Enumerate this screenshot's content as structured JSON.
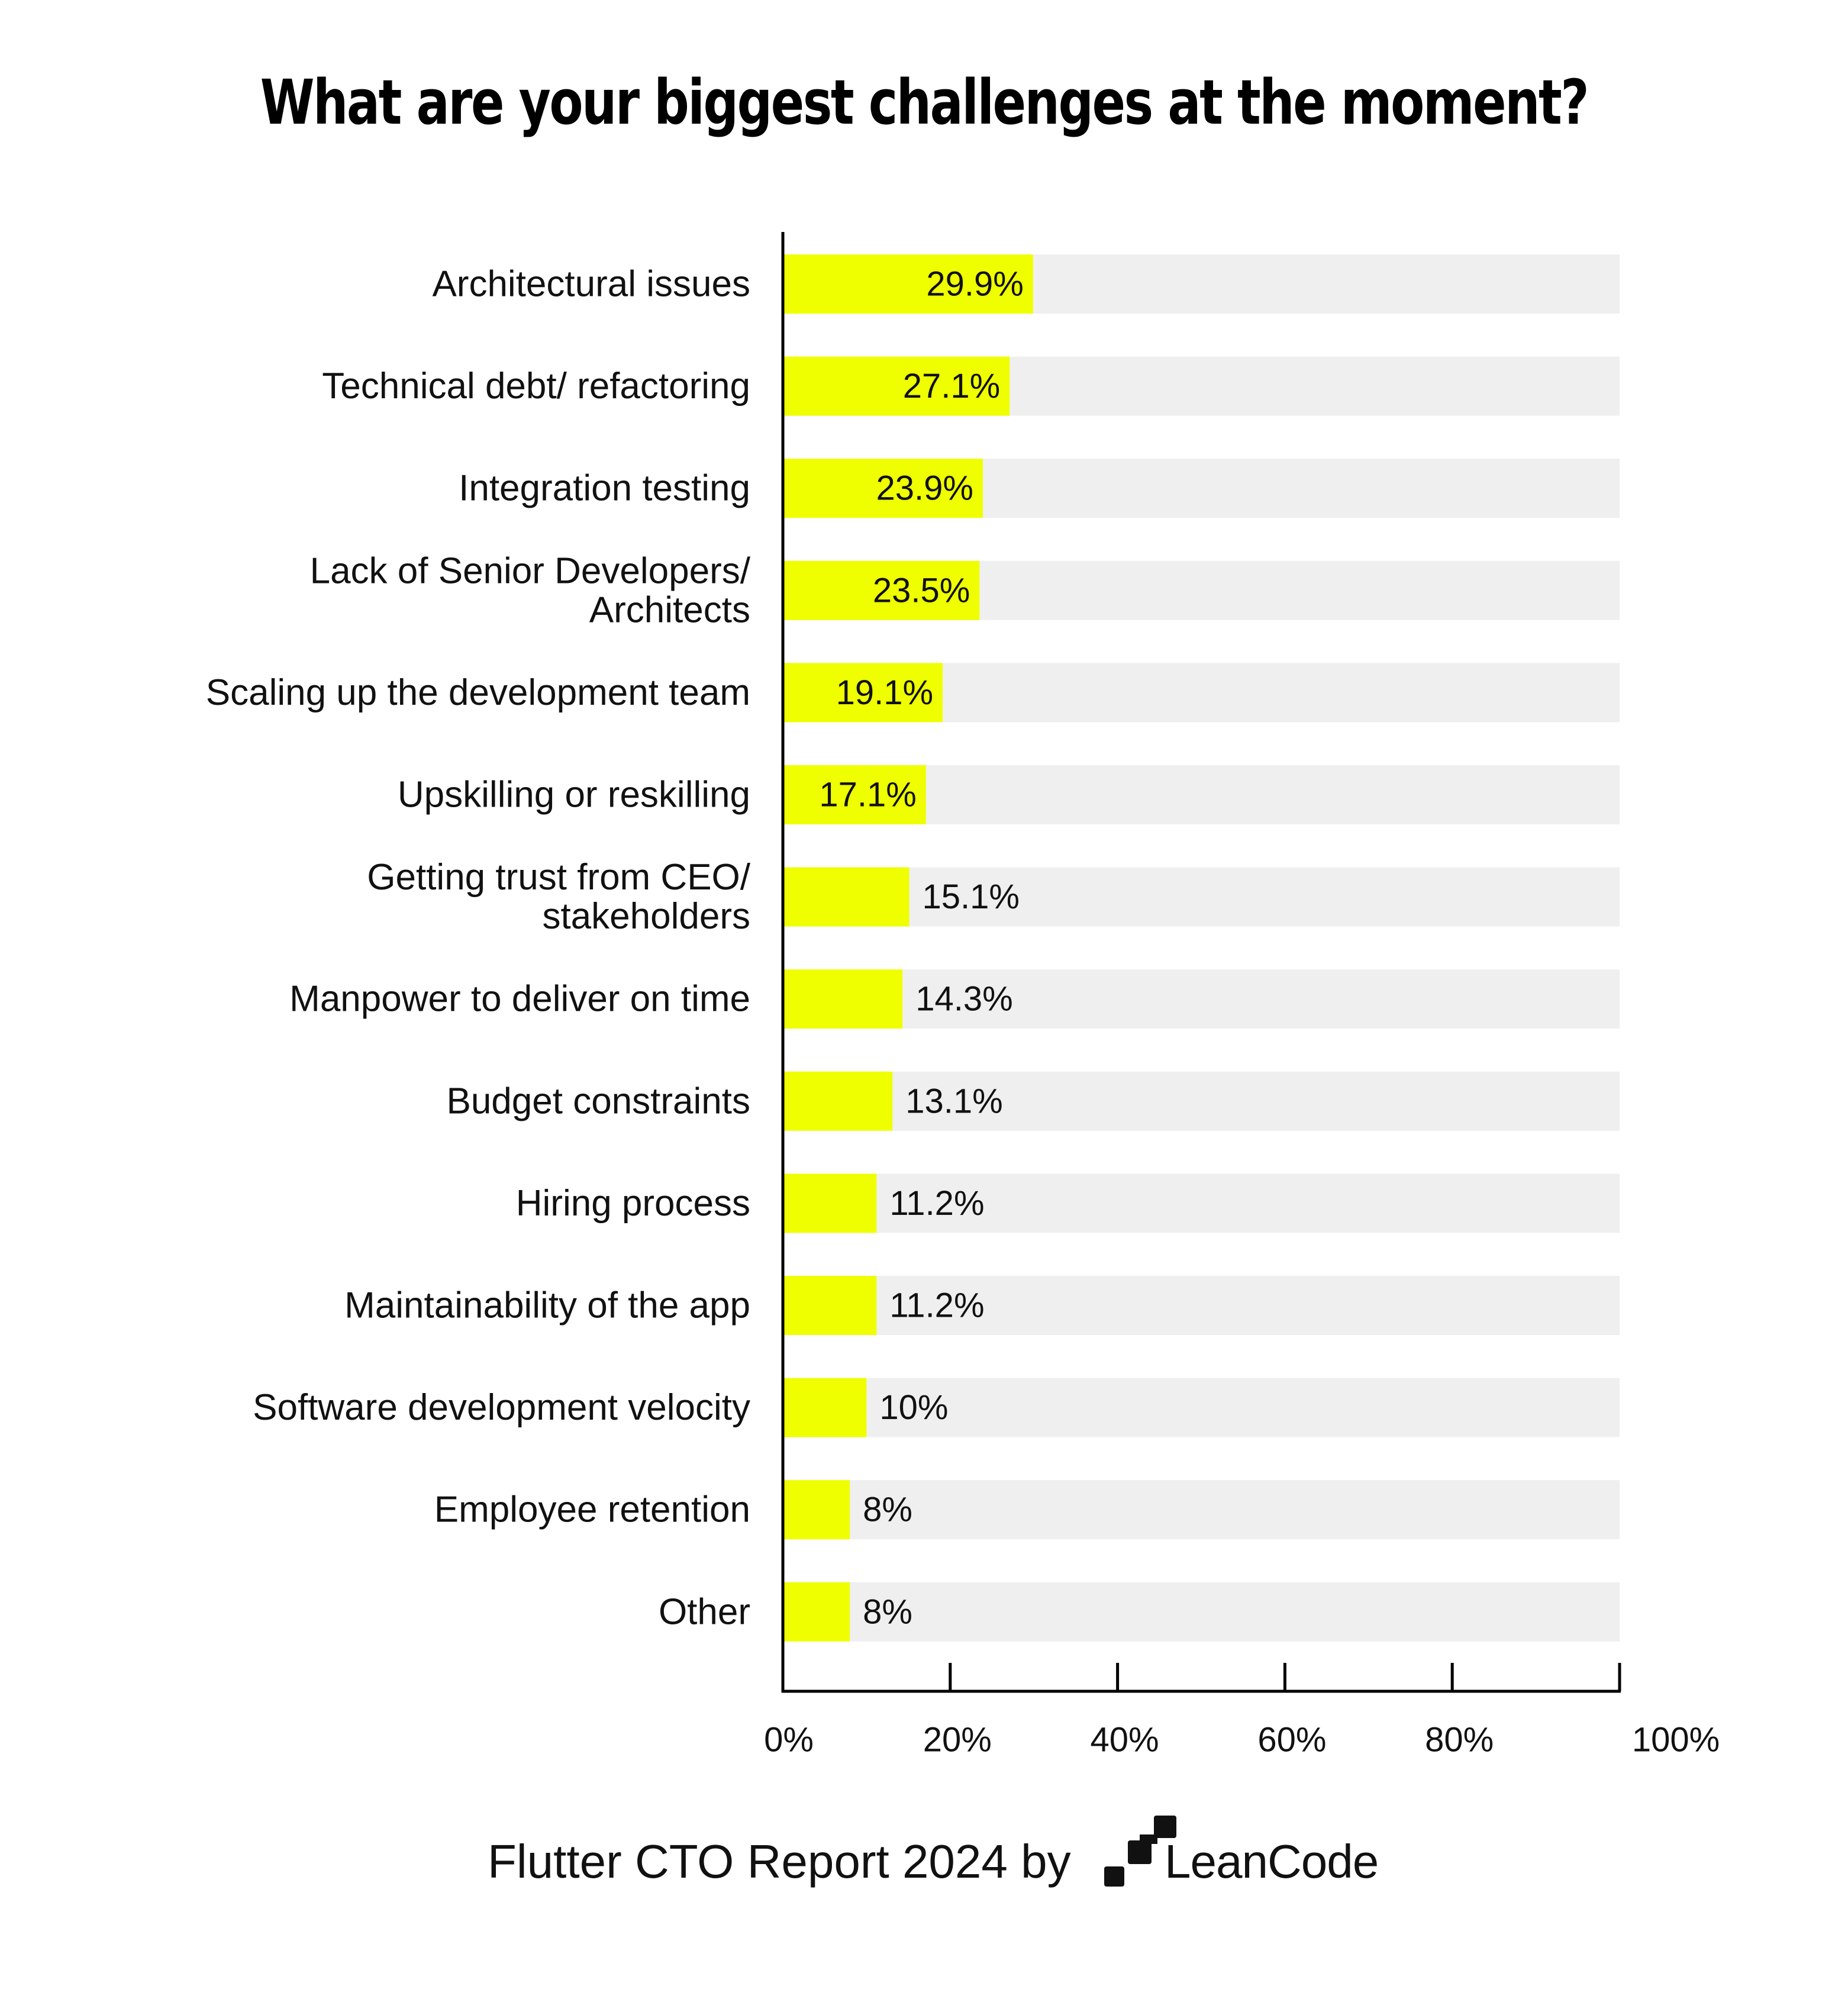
{
  "chart_data": {
    "type": "bar",
    "orientation": "horizontal",
    "title": "What are your biggest challenges at the moment?",
    "categories": [
      "Architectural issues",
      "Technical debt/ refactoring",
      "Integration testing",
      "Lack of Senior Developers/ Architects",
      "Scaling up the development team",
      "Upskilling or reskilling",
      "Getting trust from CEO/ stakeholders",
      "Manpower to deliver on time",
      "Budget constraints",
      "Hiring process",
      "Maintainability of the app",
      "Software development velocity",
      "Employee retention",
      "Other"
    ],
    "category_lines": [
      [
        "Architectural issues"
      ],
      [
        "Technical debt/ refactoring"
      ],
      [
        "Integration testing"
      ],
      [
        "Lack of Senior Developers/",
        "Architects"
      ],
      [
        "Scaling up the development team"
      ],
      [
        "Upskilling or reskilling"
      ],
      [
        "Getting trust from CEO/",
        "stakeholders"
      ],
      [
        "Manpower to deliver on time"
      ],
      [
        "Budget constraints"
      ],
      [
        "Hiring process"
      ],
      [
        "Maintainability of the app"
      ],
      [
        "Software development velocity"
      ],
      [
        "Employee retention"
      ],
      [
        "Other"
      ]
    ],
    "values": [
      29.9,
      27.1,
      23.9,
      23.5,
      19.1,
      17.1,
      15.1,
      14.3,
      13.1,
      11.2,
      11.2,
      10,
      8,
      8
    ],
    "value_labels": [
      "29.9%",
      "27.1%",
      "23.9%",
      "23.5%",
      "19.1%",
      "17.1%",
      "15.1%",
      "14.3%",
      "13.1%",
      "11.2%",
      "11.2%",
      "10%",
      "8%",
      "8%"
    ],
    "xlim": [
      0,
      100
    ],
    "xticks": [
      0,
      20,
      40,
      60,
      80,
      100
    ],
    "xtick_labels": [
      "0%",
      "20%",
      "40%",
      "60%",
      "80%",
      "100%"
    ],
    "xlabel": "",
    "ylabel": "",
    "grid": false,
    "legend": "none",
    "colors": {
      "bar": "#EFFF00",
      "track": "#EFEFEF",
      "axis": "#000000",
      "text": "#111111"
    }
  },
  "footer": {
    "text": "Flutter CTO Report 2024 by",
    "brand": "LeanCode",
    "brand_icon": "leancode-logo-icon"
  }
}
